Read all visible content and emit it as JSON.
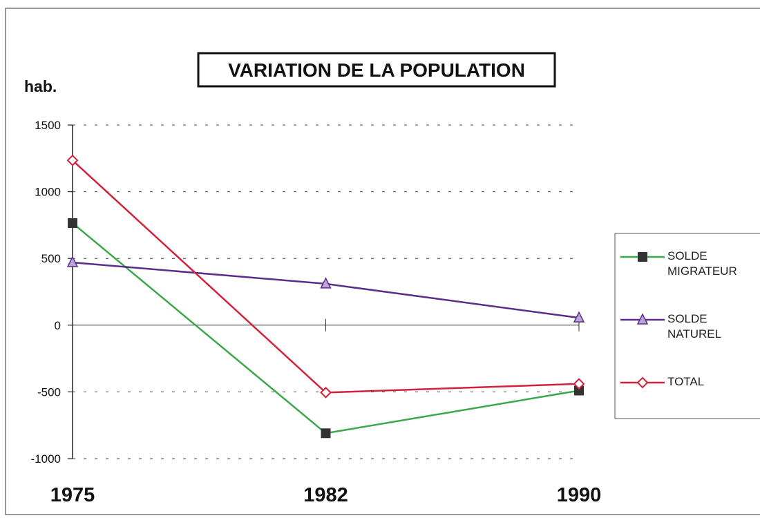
{
  "chart_data": {
    "type": "line",
    "title": "VARIATION DE LA POPULATION",
    "y_label": "hab.",
    "categories": [
      "1975",
      "1982",
      "1990"
    ],
    "series": [
      {
        "name": "SOLDE MIGRATEUR",
        "color": "#3aa84a",
        "marker": "square",
        "marker_color": "#333333",
        "values": [
          765,
          -810,
          -490
        ]
      },
      {
        "name": "SOLDE NATUREL",
        "color": "#5a2d8c",
        "marker": "triangle",
        "marker_color": "#5a2d8c",
        "values": [
          470,
          310,
          55
        ]
      },
      {
        "name": "TOTAL",
        "color": "#d4203a",
        "marker": "diamond",
        "marker_color": "#d4203a",
        "values": [
          1235,
          -505,
          -440
        ]
      }
    ],
    "ylim": [
      -1000,
      1500
    ],
    "yticks": [
      -1000,
      -500,
      0,
      500,
      1000,
      1500
    ],
    "grid": true,
    "legend": "right"
  }
}
